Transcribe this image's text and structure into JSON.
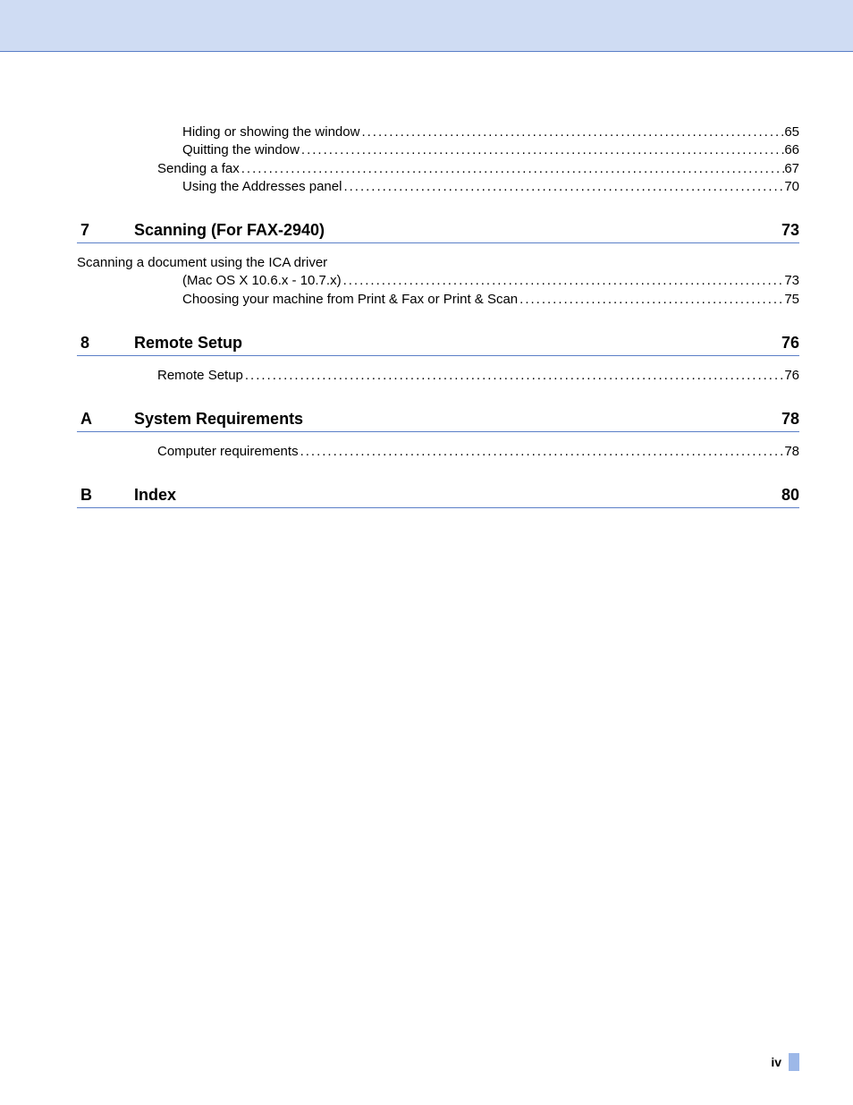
{
  "colors": {
    "header_bg": "#cfdcf3",
    "rule": "#5b7fc7",
    "tab": "#9db8e8",
    "text": "#000000",
    "page_bg": "#ffffff"
  },
  "typography": {
    "body_font": "Arial, Helvetica, sans-serif",
    "section_title_fontsize": 18,
    "section_title_weight": "bold",
    "entry_fontsize": 15
  },
  "pre_entries": [
    {
      "label": "Hiding or showing the window",
      "page": "65",
      "indent": 1
    },
    {
      "label": "Quitting the window",
      "page": "66",
      "indent": 1
    },
    {
      "label": "Sending a fax",
      "page": "67",
      "indent": 0
    },
    {
      "label": "Using the Addresses panel",
      "page": "70",
      "indent": 1
    }
  ],
  "sections": [
    {
      "num": "7",
      "title": "Scanning (For FAX-2940)",
      "page": "73",
      "entries": [
        {
          "label": "Scanning a document using the ICA driver",
          "page": "",
          "indent": 0,
          "no_dots": true
        },
        {
          "label": "(Mac OS X 10.6.x - 10.7.x)",
          "page": "73",
          "indent": 1
        },
        {
          "label": "Choosing your machine from Print & Fax or Print & Scan",
          "page": "75",
          "indent": 1
        }
      ]
    },
    {
      "num": "8",
      "title": "Remote Setup",
      "page": "76",
      "entries": [
        {
          "label": "Remote Setup",
          "page": "76",
          "indent": 0
        }
      ]
    },
    {
      "num": "A",
      "title": "System Requirements",
      "page": "78",
      "entries": [
        {
          "label": "Computer requirements",
          "page": "78",
          "indent": 0
        }
      ]
    },
    {
      "num": "B",
      "title": "Index",
      "page": "80",
      "entries": []
    }
  ],
  "footer": {
    "page_number": "iv"
  },
  "dot_fill": "...................................................................................................................................................................................................."
}
